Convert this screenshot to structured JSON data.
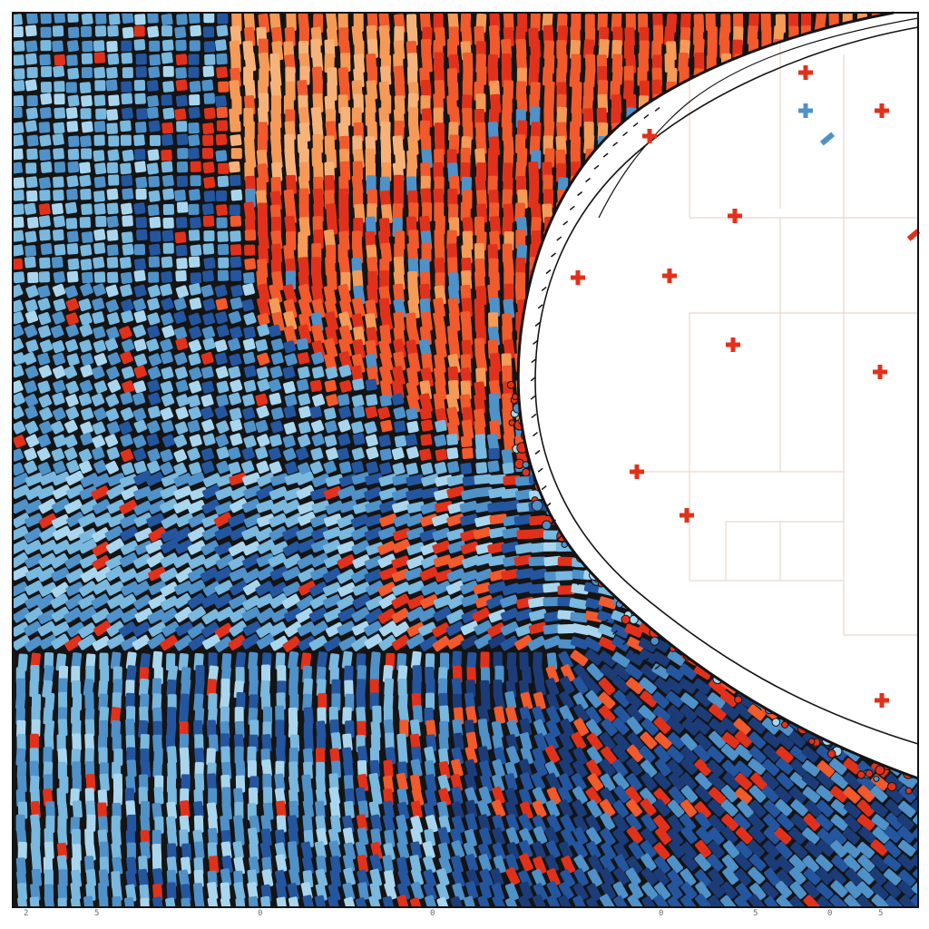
{
  "artwork": {
    "palette": {
      "light_blue": "#79b8df",
      "mid_blue": "#4f91c9",
      "deep_blue": "#24559f",
      "navy": "#1b3c78",
      "pale_blue": "#a9d6ee",
      "red": "#e2311b",
      "orange_red": "#f2592b",
      "orange": "#f59a57",
      "peach": "#f7b27a",
      "grout": "#141414",
      "paper": "#ffffff",
      "grid_line": "#e7d8cf"
    },
    "icons": [
      "mosaic-wave",
      "cross-marker",
      "grid-panel",
      "arc-curve"
    ]
  },
  "edge_labels": [
    "2",
    "5",
    "0",
    "0",
    "0",
    "5",
    "0",
    "5"
  ]
}
